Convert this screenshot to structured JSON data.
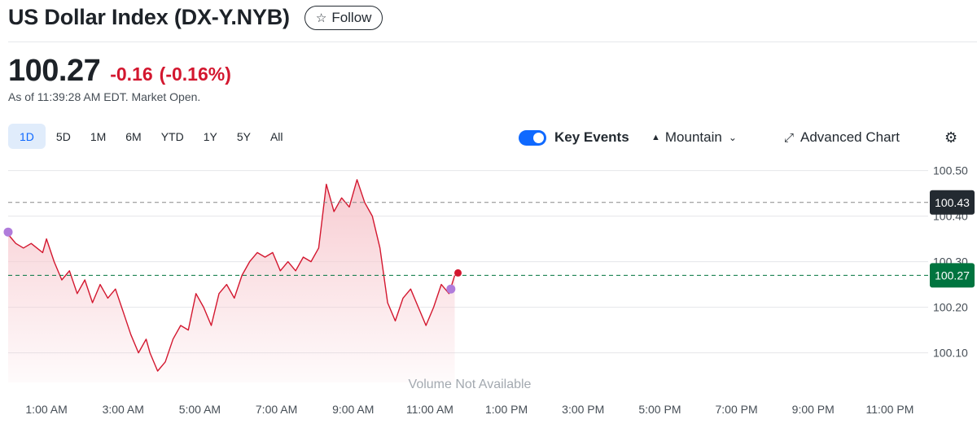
{
  "header": {
    "title": "US Dollar Index (DX-Y.NYB)",
    "follow_label": "Follow"
  },
  "quote": {
    "price": "100.27",
    "change": "-0.16",
    "change_pct": "(-0.16%)",
    "as_of": "As of 11:39:28 AM EDT. Market Open."
  },
  "toolbar": {
    "ranges": [
      "1D",
      "5D",
      "1M",
      "6M",
      "YTD",
      "1Y",
      "5Y",
      "All"
    ],
    "active_range": "1D",
    "key_events_label": "Key Events",
    "chart_type_label": "Mountain",
    "advanced_chart_label": "Advanced Chart"
  },
  "colors": {
    "line": "#d3172f",
    "fill": "#f7c9cf",
    "prev_close": "#888888",
    "current": "#00743f",
    "accent": "#0f69ff",
    "event_marker": "#b07cdb"
  },
  "chart_data": {
    "type": "area",
    "xlabel": "",
    "ylabel": "",
    "xlim": [
      0,
      24
    ],
    "ylim": [
      100.035,
      100.535
    ],
    "x_ticks": [
      1,
      3,
      5,
      7,
      9,
      11,
      13,
      15,
      17,
      19,
      21,
      23
    ],
    "x_tick_labels": [
      "1:00 AM",
      "3:00 AM",
      "5:00 AM",
      "7:00 AM",
      "9:00 AM",
      "11:00 AM",
      "1:00 PM",
      "3:00 PM",
      "5:00 PM",
      "7:00 PM",
      "9:00 PM",
      "11:00 PM"
    ],
    "y_ticks": [
      100.1,
      100.2,
      100.3,
      100.4,
      100.5
    ],
    "y_tick_labels": [
      "100.10",
      "100.20",
      "100.30",
      "100.40",
      "100.50"
    ],
    "grid": "horizontal",
    "previous_close": 100.43,
    "previous_close_label": "100.43",
    "current": 100.27,
    "current_label": "100.27",
    "annotation": "Volume Not Available",
    "series": [
      {
        "x": [
          0.0,
          0.2,
          0.4,
          0.6,
          0.9,
          1.0,
          1.2,
          1.4,
          1.6,
          1.8,
          2.0,
          2.2,
          2.4,
          2.6,
          2.8,
          3.0,
          3.2,
          3.4,
          3.6,
          3.7,
          3.9,
          4.1,
          4.3,
          4.5,
          4.7,
          4.9,
          5.1,
          5.3,
          5.5,
          5.7,
          5.9,
          6.1,
          6.3,
          6.5,
          6.7,
          6.9,
          7.1,
          7.3,
          7.5,
          7.7,
          7.9,
          8.1,
          8.3,
          8.5,
          8.7,
          8.9,
          9.1,
          9.3,
          9.5,
          9.7,
          9.9,
          10.1,
          10.3,
          10.5,
          10.7,
          10.9,
          11.1,
          11.3,
          11.5,
          11.65
        ],
        "y": [
          100.36,
          100.34,
          100.33,
          100.34,
          100.32,
          100.35,
          100.3,
          100.26,
          100.28,
          100.23,
          100.26,
          100.21,
          100.25,
          100.22,
          100.24,
          100.19,
          100.14,
          100.1,
          100.13,
          100.1,
          100.06,
          100.08,
          100.13,
          100.16,
          100.15,
          100.23,
          100.2,
          100.16,
          100.23,
          100.25,
          100.22,
          100.27,
          100.3,
          100.32,
          100.31,
          100.32,
          100.28,
          100.3,
          100.28,
          100.31,
          100.3,
          100.33,
          100.47,
          100.41,
          100.44,
          100.42,
          100.48,
          100.43,
          100.4,
          100.33,
          100.21,
          100.17,
          100.22,
          100.24,
          100.2,
          100.16,
          100.2,
          100.25,
          100.23,
          100.27
        ]
      }
    ],
    "event_markers": [
      {
        "x": 0.0,
        "y": 100.365
      },
      {
        "x": 11.55,
        "y": 100.24
      }
    ]
  }
}
